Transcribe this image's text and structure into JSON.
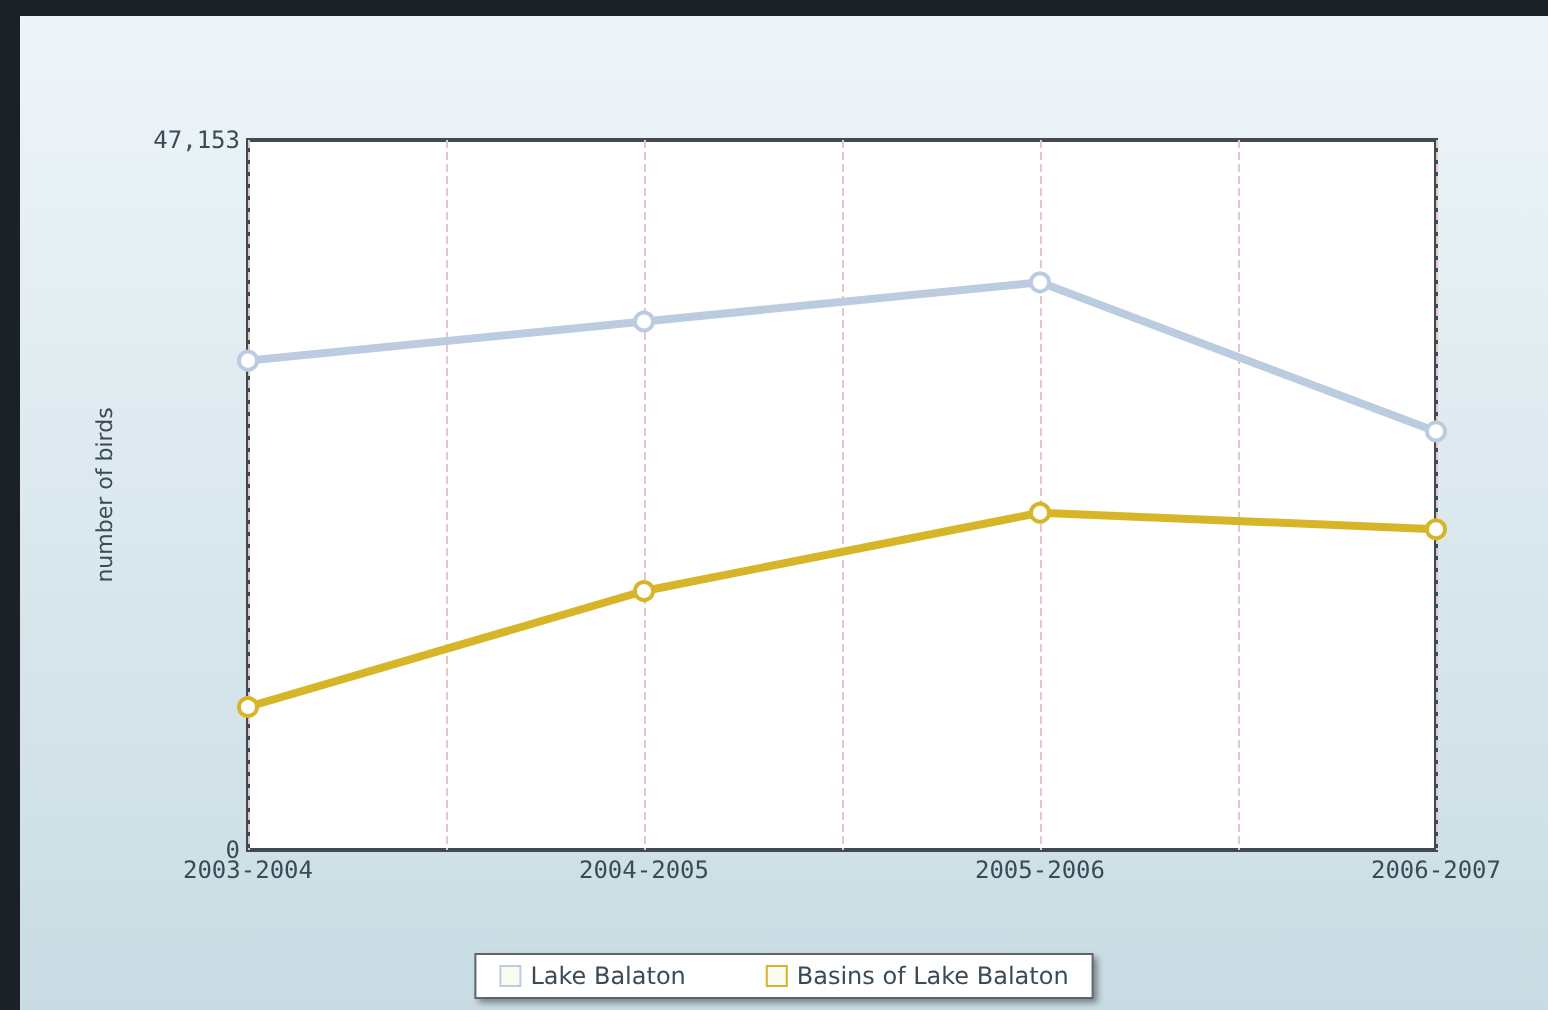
{
  "chart_data": {
    "type": "line",
    "ylabel": "number of birds",
    "categories": [
      "2003-2004",
      "2004-2005",
      "2005-2006",
      "2006-2007"
    ],
    "series": [
      {
        "name": "Lake Balaton",
        "color": "#bccce0",
        "values": [
          32500,
          35100,
          37700,
          27800
        ]
      },
      {
        "name": "Basins of Lake Balaton",
        "color": "#d6b628",
        "values": [
          9500,
          17200,
          22400,
          21300
        ]
      }
    ],
    "ylim": [
      0,
      47153
    ],
    "yticks": [
      0,
      {
        "value": 47153,
        "label": "47,153"
      }
    ],
    "grid": "x",
    "legend": "bottom",
    "marker": "circle",
    "line_style": "solid"
  }
}
